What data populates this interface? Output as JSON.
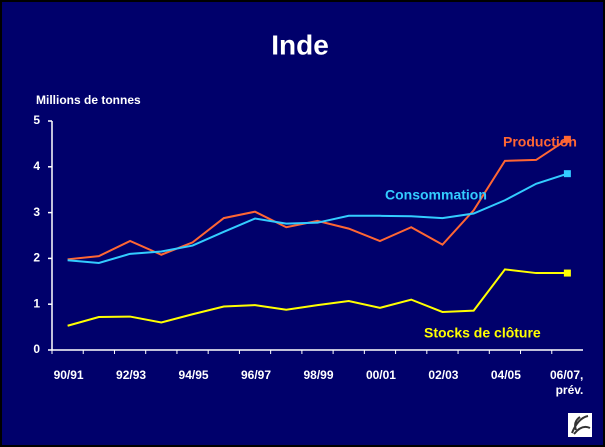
{
  "chart_data": {
    "type": "line",
    "title": "Inde",
    "y_axis_label": "Millions de tonnes",
    "categories": [
      "90/91",
      null,
      "92/93",
      null,
      "94/95",
      null,
      "96/97",
      null,
      "98/99",
      null,
      "00/01",
      null,
      "02/03",
      null,
      "04/05",
      null,
      "06/07, prév."
    ],
    "series": [
      {
        "name": "Production",
        "color": "#ff6633",
        "values": [
          1.98,
          2.05,
          2.38,
          2.08,
          2.35,
          2.88,
          3.02,
          2.68,
          2.82,
          2.65,
          2.38,
          2.68,
          2.3,
          3.05,
          4.13,
          4.15,
          4.6
        ]
      },
      {
        "name": "Consommation",
        "color": "#33ccff",
        "values": [
          1.96,
          1.9,
          2.1,
          2.15,
          2.28,
          2.58,
          2.87,
          2.76,
          2.78,
          2.93,
          2.93,
          2.92,
          2.88,
          2.98,
          3.27,
          3.63,
          3.85
        ]
      },
      {
        "name": "Stocks de clôture",
        "color": "#ffff00",
        "values": [
          0.53,
          0.72,
          0.73,
          0.6,
          0.78,
          0.95,
          0.98,
          0.88,
          0.98,
          1.07,
          0.92,
          1.1,
          0.83,
          0.86,
          1.76,
          1.68,
          1.68
        ]
      }
    ],
    "ylim": [
      0,
      5
    ],
    "yticks": [
      0,
      1,
      2,
      3,
      4,
      5
    ]
  }
}
